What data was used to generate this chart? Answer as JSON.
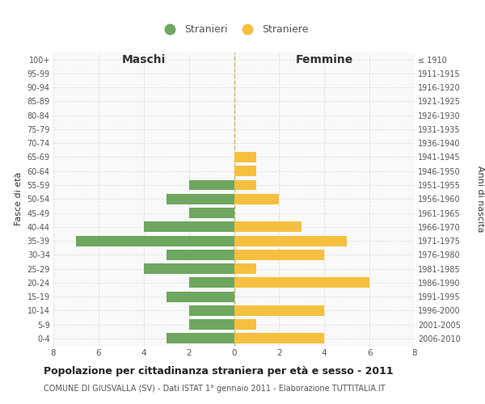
{
  "age_groups": [
    "0-4",
    "5-9",
    "10-14",
    "15-19",
    "20-24",
    "25-29",
    "30-34",
    "35-39",
    "40-44",
    "45-49",
    "50-54",
    "55-59",
    "60-64",
    "65-69",
    "70-74",
    "75-79",
    "80-84",
    "85-89",
    "90-94",
    "95-99",
    "100+"
  ],
  "birth_years": [
    "2006-2010",
    "2001-2005",
    "1996-2000",
    "1991-1995",
    "1986-1990",
    "1981-1985",
    "1976-1980",
    "1971-1975",
    "1966-1970",
    "1961-1965",
    "1956-1960",
    "1951-1955",
    "1946-1950",
    "1941-1945",
    "1936-1940",
    "1931-1935",
    "1926-1930",
    "1921-1925",
    "1916-1920",
    "1911-1915",
    "≤ 1910"
  ],
  "maschi": [
    3,
    2,
    2,
    3,
    2,
    4,
    3,
    7,
    4,
    2,
    3,
    2,
    0,
    0,
    0,
    0,
    0,
    0,
    0,
    0,
    0
  ],
  "femmine": [
    4,
    1,
    4,
    0,
    6,
    1,
    4,
    5,
    3,
    0,
    2,
    1,
    1,
    1,
    0,
    0,
    0,
    0,
    0,
    0,
    0
  ],
  "maschi_color": "#6fa660",
  "femmine_color": "#f5c040",
  "title": "Popolazione per cittadinanza straniera per età e sesso - 2011",
  "subtitle": "COMUNE DI GIUSVALLA (SV) - Dati ISTAT 1° gennaio 2011 - Elaborazione TUTTITALIA.IT",
  "ylabel_left": "Fasce di età",
  "ylabel_right": "Anni di nascita",
  "legend_stranieri": "Stranieri",
  "legend_straniere": "Straniere",
  "maschi_label": "Maschi",
  "femmine_label": "Femmine",
  "xlim": 8,
  "background_color": "#ffffff",
  "plot_bg_color": "#f9f9f9",
  "grid_color": "#dddddd",
  "center_line_color": "#aaaaaa"
}
